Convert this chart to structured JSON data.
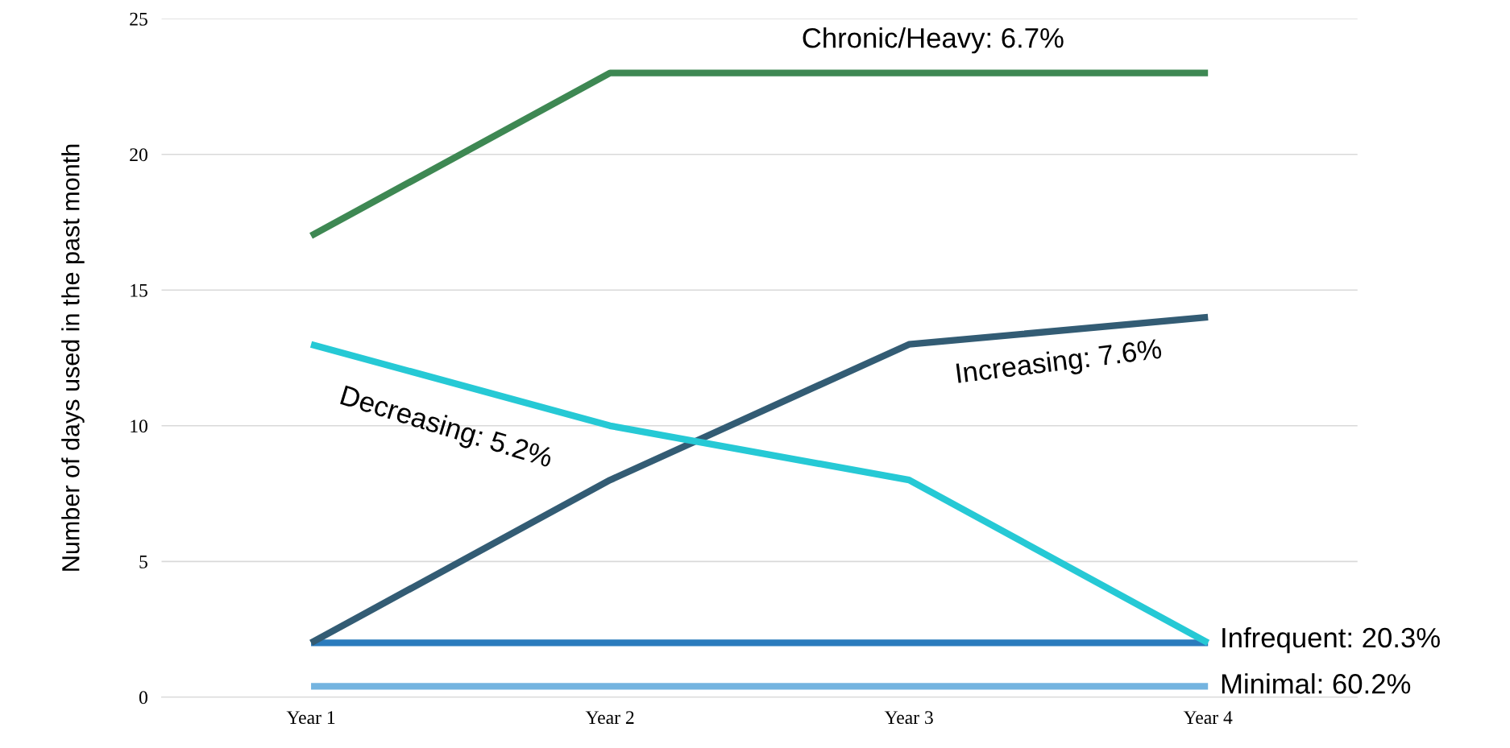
{
  "chart_data": {
    "type": "line",
    "ylabel": "Number of days used in the past month",
    "categories": [
      "Year 1",
      "Year 2",
      "Year 3",
      "Year 4"
    ],
    "ylim": [
      0,
      25
    ],
    "yticks": [
      0,
      5,
      10,
      15,
      20,
      25
    ],
    "grid": "y",
    "legend": false,
    "marker": "none",
    "line_style": "solid",
    "series": [
      {
        "name": "Chronic/Heavy: 6.7%",
        "color": "#3e8853",
        "values": [
          17,
          23,
          23,
          23
        ]
      },
      {
        "name": "Decreasing: 5.2%",
        "color": "#26c9d5",
        "values": [
          13,
          10,
          8,
          2
        ]
      },
      {
        "name": "Increasing: 7.6%",
        "color": "#335c74",
        "values": [
          2,
          8,
          13,
          14
        ]
      },
      {
        "name": "Infrequent: 20.3%",
        "color": "#2a7bbd",
        "values": [
          2,
          2,
          2,
          2
        ]
      },
      {
        "name": "Minimal: 60.2%",
        "color": "#74b4e0",
        "values": [
          0.4,
          0.4,
          0.4,
          0.4
        ]
      }
    ]
  }
}
